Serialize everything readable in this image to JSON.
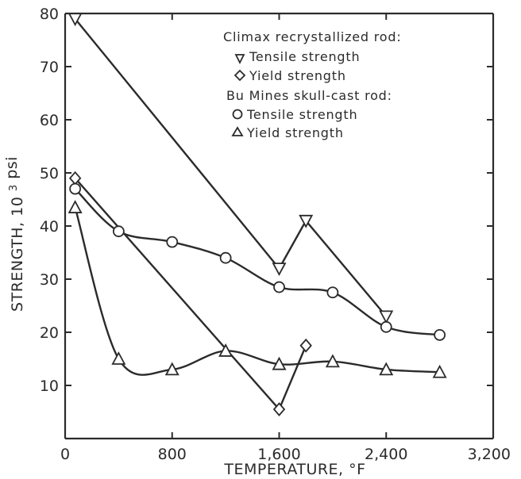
{
  "chart_data": {
    "type": "line",
    "xlabel": "TEMPERATURE, °F",
    "ylabel_main": "STRENGTH,",
    "ylabel_base": "10",
    "ylabel_exp": "3",
    "ylabel_unit": "psi",
    "xlim": [
      0,
      3200
    ],
    "ylim": [
      0,
      80
    ],
    "x_ticks": [
      0,
      800,
      1600,
      2400,
      3200
    ],
    "x_tick_labels": [
      "0",
      "800",
      "1,600",
      "2,400",
      "3,200"
    ],
    "y_ticks": [
      10,
      20,
      30,
      40,
      50,
      60,
      70,
      80
    ],
    "y_tick_labels": [
      "10",
      "20",
      "30",
      "40",
      "50",
      "60",
      "70",
      "80"
    ],
    "grid": false,
    "legend": {
      "placement": "top-right",
      "groups": [
        {
          "title": "Climax recrystallized rod:",
          "entries": [
            {
              "label": "Tensile strength",
              "marker": "triangle-down"
            },
            {
              "label": "Yield strength",
              "marker": "diamond"
            }
          ]
        },
        {
          "title": "Bu Mines skull-cast rod:",
          "entries": [
            {
              "label": "Tensile strength",
              "marker": "circle"
            },
            {
              "label": "Yield strength",
              "marker": "triangle-up"
            }
          ]
        }
      ]
    },
    "series": [
      {
        "name": "Tensile strength",
        "group": "Climax recrystallized rod:",
        "marker": "triangle-down",
        "smooth": false,
        "x": [
          75,
          1600,
          1800,
          2400
        ],
        "y": [
          79,
          32,
          41,
          23
        ]
      },
      {
        "name": "Yield strength",
        "group": "Climax recrystallized rod:",
        "marker": "diamond",
        "smooth": false,
        "x": [
          75,
          1600,
          1800
        ],
        "y": [
          49,
          5.5,
          17.5
        ]
      },
      {
        "name": "Tensile strength",
        "group": "Bu Mines skull-cast rod:",
        "marker": "circle",
        "smooth": true,
        "x": [
          75,
          400,
          800,
          1200,
          1600,
          2000,
          2400,
          2800
        ],
        "y": [
          47,
          39,
          37,
          34,
          28.5,
          27.5,
          21,
          19.5
        ]
      },
      {
        "name": "Yield strength",
        "group": "Bu Mines skull-cast rod:",
        "marker": "triangle-up",
        "smooth": true,
        "x": [
          75,
          400,
          800,
          1200,
          1600,
          2000,
          2400,
          2800
        ],
        "y": [
          43.5,
          15,
          13,
          16.5,
          14,
          14.5,
          13,
          12.5
        ]
      }
    ]
  }
}
